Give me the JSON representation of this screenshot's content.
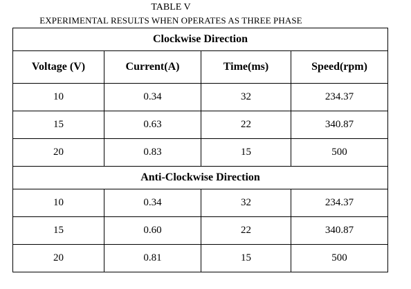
{
  "header": {
    "title": "TABLE V",
    "caption": "EXPERIMENTAL RESULTS WHEN OPERATES AS THREE PHASE"
  },
  "table": {
    "columns": [
      "Voltage (V)",
      "Current(A)",
      "Time(ms)",
      "Speed(rpm)"
    ],
    "sections": [
      {
        "title": "Clockwise Direction",
        "rows": [
          [
            "10",
            "0.34",
            "32",
            "234.37"
          ],
          [
            "15",
            "0.63",
            "22",
            "340.87"
          ],
          [
            "20",
            "0.83",
            "15",
            "500"
          ]
        ]
      },
      {
        "title": "Anti-Clockwise Direction",
        "rows": [
          [
            "10",
            "0.34",
            "32",
            "234.37"
          ],
          [
            "15",
            "0.60",
            "22",
            "340.87"
          ],
          [
            "20",
            "0.81",
            "15",
            "500"
          ]
        ]
      }
    ]
  }
}
